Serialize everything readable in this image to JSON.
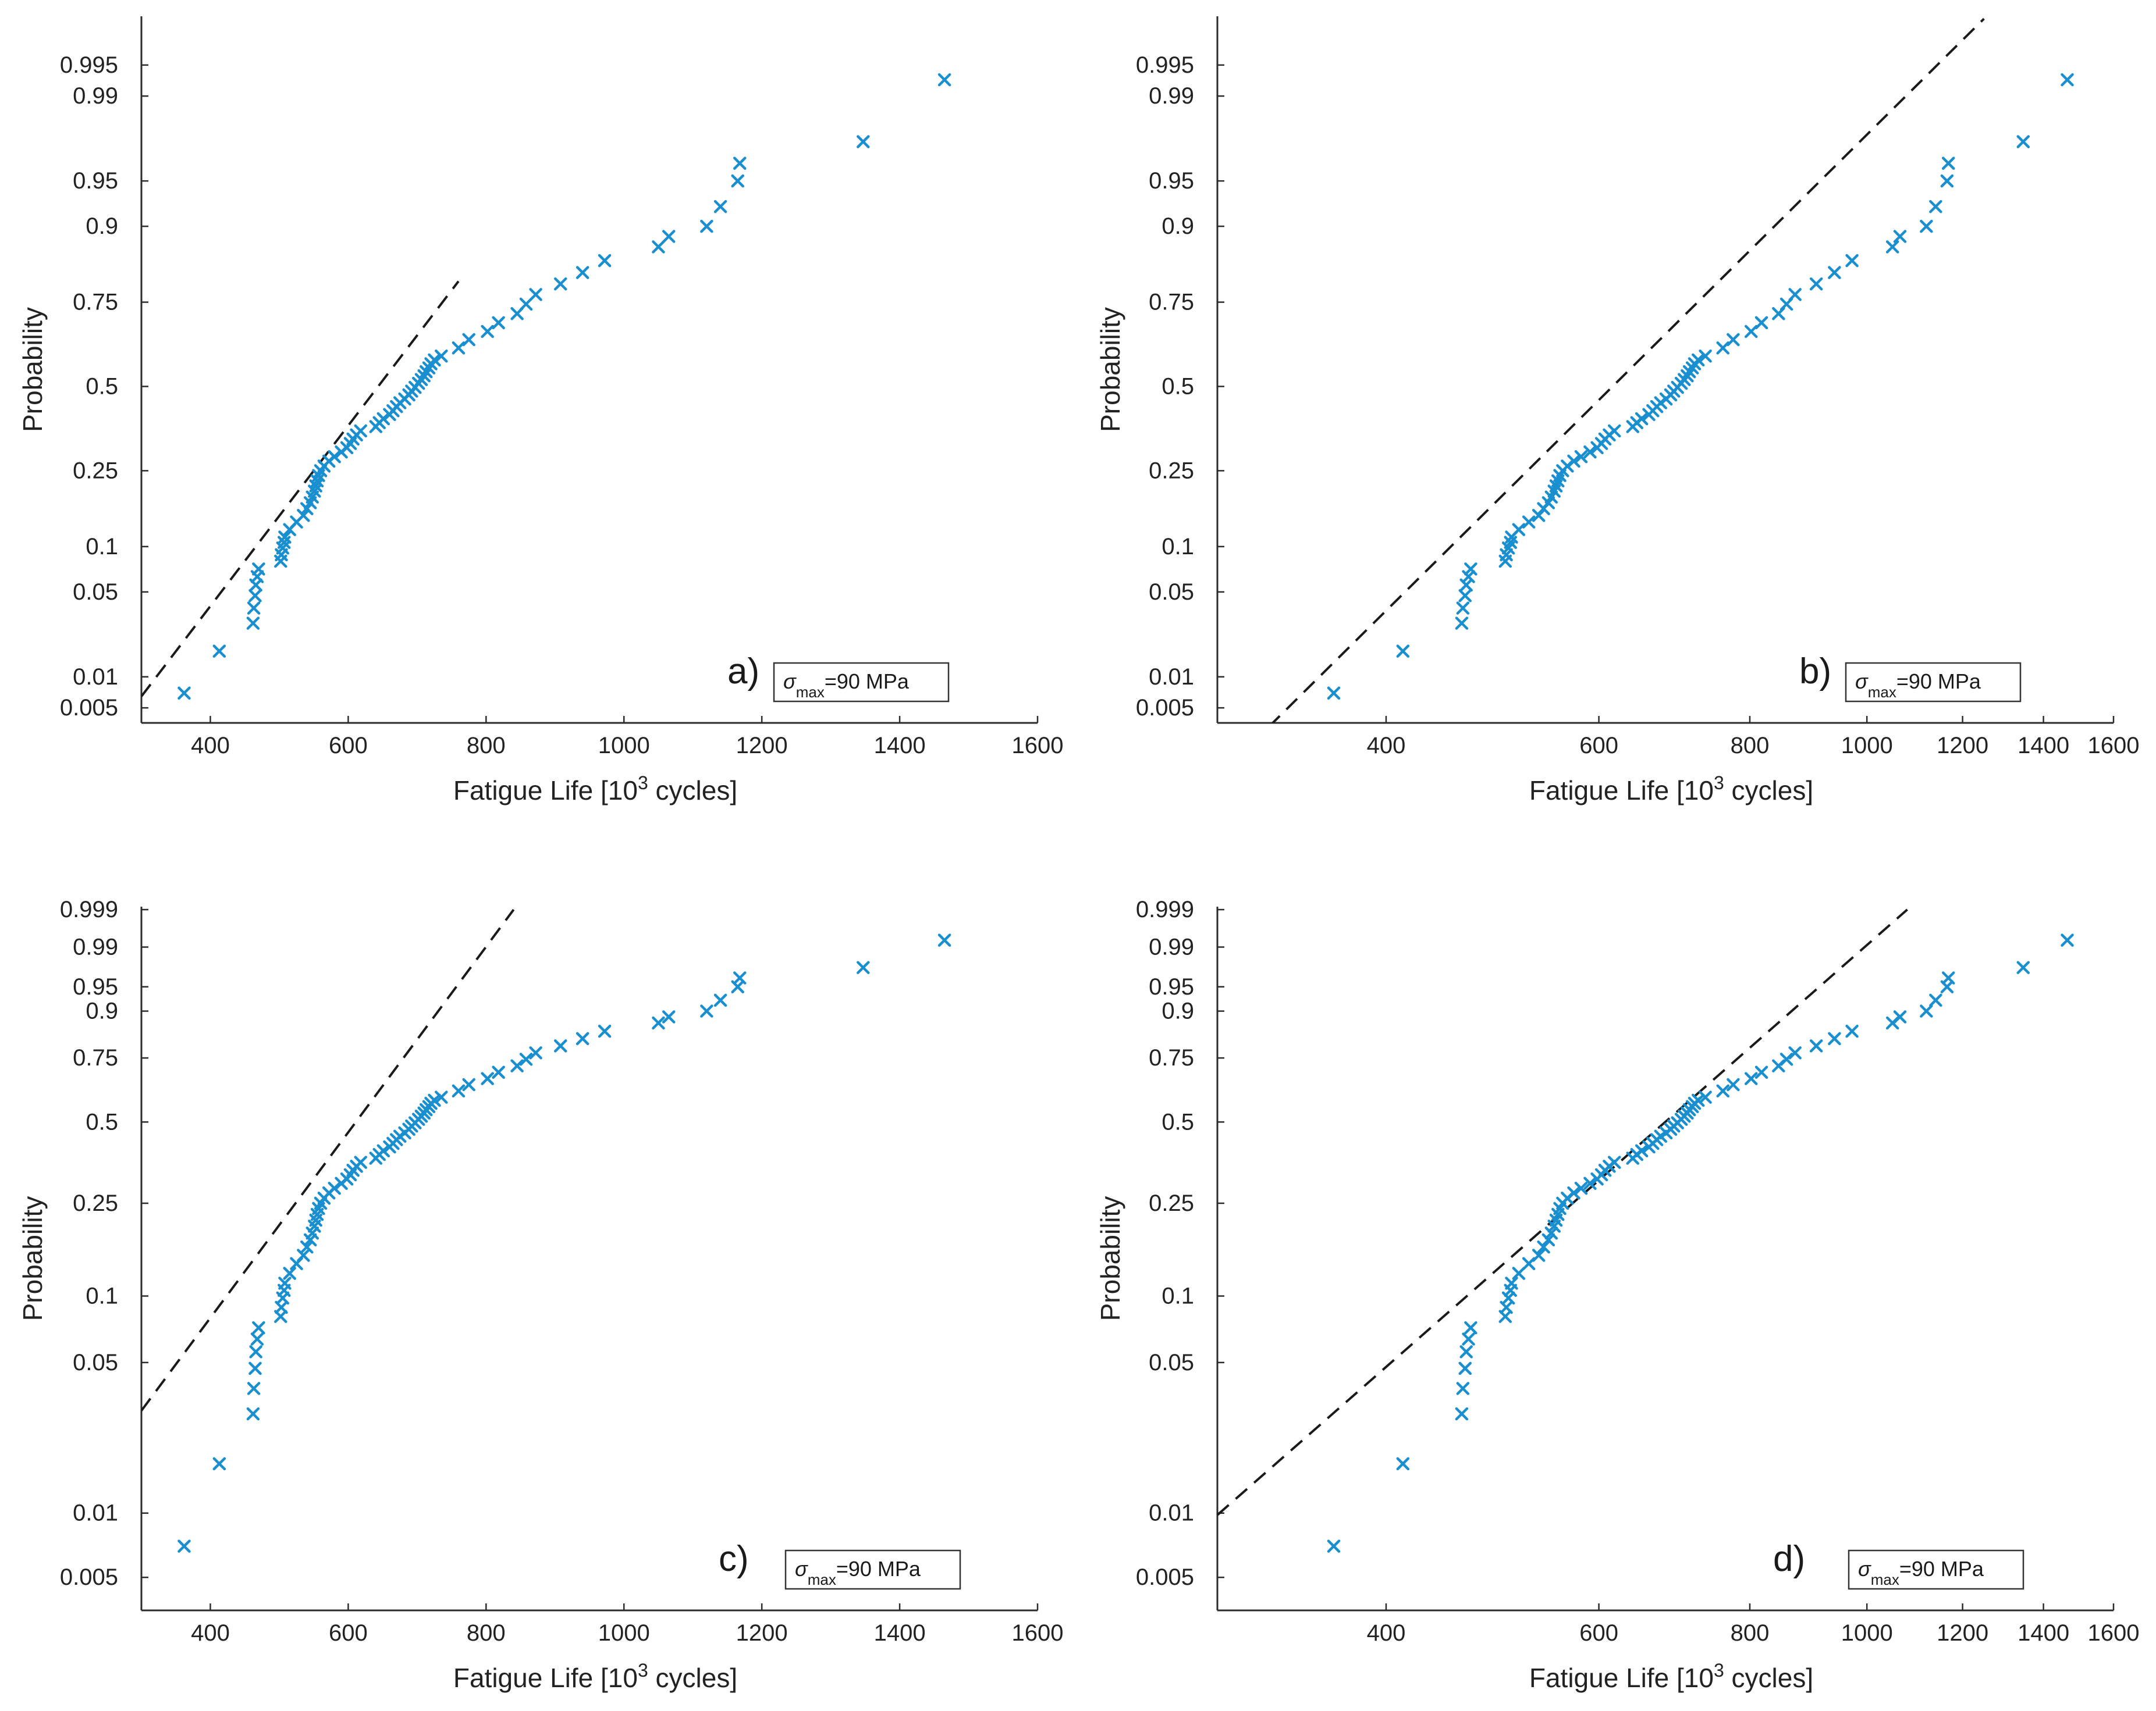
{
  "figure": {
    "xlabel_main": "Fatigue Life [10",
    "xlabel_sup": "3",
    "xlabel_end": " cycles]",
    "ylabel": "Probability",
    "annotation_sigma": "σ",
    "annotation_sub": "max",
    "annotation_rest": "=90 MPa"
  },
  "chart_data": [
    {
      "type": "scatter",
      "panel": "a)",
      "title": "",
      "xlabel": "Fatigue Life [10^3 cycles]",
      "ylabel": "Probability",
      "x_scale": "linear",
      "y_scale": "normal-probability",
      "xlim": [
        300,
        1600
      ],
      "ylim": [
        0.0035,
        0.9985
      ],
      "xticks": [
        400,
        600,
        800,
        1000,
        1200,
        1400,
        1600
      ],
      "xtick_labels": [
        "400",
        "600",
        "800",
        "1000",
        "1200",
        "1400",
        "1600"
      ],
      "yticks": [
        0.005,
        0.01,
        0.05,
        0.1,
        0.25,
        0.5,
        0.75,
        0.9,
        0.95,
        0.99,
        0.995
      ],
      "ytick_labels": [
        "0.005",
        "0.01",
        "0.05",
        "0.1",
        "0.25",
        "0.5",
        "0.75",
        "0.9",
        "0.95",
        "0.99",
        "0.995"
      ],
      "fit_line": {
        "style": "dashed",
        "x": [
          300,
          760
        ],
        "y": [
          0.0065,
          0.8
        ]
      },
      "annotation": "σmax=90 MPa",
      "series": [
        {
          "name": "data",
          "marker": "x",
          "color": "#1a8fcf",
          "x": [
            362,
            413,
            462,
            463,
            465,
            466,
            468,
            470,
            502,
            503,
            505,
            507,
            508,
            515,
            525,
            535,
            540,
            545,
            548,
            551,
            553,
            555,
            557,
            560,
            565,
            572,
            580,
            590,
            598,
            603,
            607,
            612,
            618,
            640,
            645,
            651,
            660,
            665,
            670,
            675,
            682,
            688,
            692,
            697,
            702,
            706,
            710,
            713,
            717,
            720,
            725,
            735,
            760,
            775,
            802,
            818,
            845,
            858,
            872,
            908,
            940,
            972,
            1050,
            1065,
            1120,
            1140,
            1165,
            1168,
            1347,
            1465
          ],
          "y": [
            0.007,
            0.017,
            0.029,
            0.038,
            0.047,
            0.056,
            0.064,
            0.072,
            0.081,
            0.089,
            0.098,
            0.106,
            0.114,
            0.126,
            0.139,
            0.151,
            0.164,
            0.176,
            0.188,
            0.201,
            0.213,
            0.225,
            0.238,
            0.25,
            0.262,
            0.275,
            0.287,
            0.3,
            0.312,
            0.324,
            0.337,
            0.349,
            0.361,
            0.374,
            0.386,
            0.398,
            0.411,
            0.423,
            0.436,
            0.448,
            0.46,
            0.473,
            0.485,
            0.497,
            0.51,
            0.522,
            0.534,
            0.547,
            0.559,
            0.572,
            0.584,
            0.596,
            0.621,
            0.646,
            0.67,
            0.695,
            0.72,
            0.745,
            0.769,
            0.794,
            0.819,
            0.843,
            0.868,
            0.885,
            0.9,
            0.925,
            0.95,
            0.963,
            0.975,
            0.993
          ]
        }
      ]
    },
    {
      "type": "scatter",
      "panel": "b)",
      "title": "",
      "xlabel": "Fatigue Life [10^3 cycles]",
      "ylabel": "Probability",
      "x_scale": "log",
      "y_scale": "normal-probability",
      "xlim": [
        290,
        1600
      ],
      "ylim": [
        0.0035,
        0.9985
      ],
      "xticks": [
        400,
        600,
        800,
        1000,
        1200,
        1400,
        1600
      ],
      "xtick_labels": [
        "400",
        "600",
        "800",
        "1000",
        "1200",
        "1400",
        "1600"
      ],
      "yticks": [
        0.005,
        0.01,
        0.05,
        0.1,
        0.25,
        0.5,
        0.75,
        0.9,
        0.95,
        0.99,
        0.995
      ],
      "ytick_labels": [
        "0.005",
        "0.01",
        "0.05",
        "0.1",
        "0.25",
        "0.5",
        "0.75",
        "0.9",
        "0.95",
        "0.99",
        "0.995"
      ],
      "fit_line": {
        "style": "dashed",
        "x": [
          320,
          1250
        ],
        "y": [
          0.0032,
          0.9984
        ]
      },
      "annotation": "σmax=90 MPa",
      "series": [
        {
          "name": "data",
          "marker": "x",
          "color": "#1a8fcf",
          "x": [
            362,
            413,
            462,
            463,
            465,
            466,
            468,
            470,
            502,
            503,
            505,
            507,
            508,
            515,
            525,
            535,
            540,
            545,
            548,
            551,
            553,
            555,
            557,
            560,
            565,
            572,
            580,
            590,
            598,
            603,
            607,
            612,
            618,
            640,
            645,
            651,
            660,
            665,
            670,
            675,
            682,
            688,
            692,
            697,
            702,
            706,
            710,
            713,
            717,
            720,
            725,
            735,
            760,
            775,
            802,
            818,
            845,
            858,
            872,
            908,
            940,
            972,
            1050,
            1065,
            1120,
            1140,
            1165,
            1168,
            1347,
            1465
          ],
          "y": [
            0.007,
            0.017,
            0.029,
            0.038,
            0.047,
            0.056,
            0.064,
            0.072,
            0.081,
            0.089,
            0.098,
            0.106,
            0.114,
            0.126,
            0.139,
            0.151,
            0.164,
            0.176,
            0.188,
            0.201,
            0.213,
            0.225,
            0.238,
            0.25,
            0.262,
            0.275,
            0.287,
            0.3,
            0.312,
            0.324,
            0.337,
            0.349,
            0.361,
            0.374,
            0.386,
            0.398,
            0.411,
            0.423,
            0.436,
            0.448,
            0.46,
            0.473,
            0.485,
            0.497,
            0.51,
            0.522,
            0.534,
            0.547,
            0.559,
            0.572,
            0.584,
            0.596,
            0.621,
            0.646,
            0.67,
            0.695,
            0.72,
            0.745,
            0.769,
            0.794,
            0.819,
            0.843,
            0.868,
            0.885,
            0.9,
            0.925,
            0.95,
            0.963,
            0.975,
            0.993
          ]
        }
      ]
    },
    {
      "type": "scatter",
      "panel": "c)",
      "title": "",
      "xlabel": "Fatigue Life [10^3 cycles]",
      "ylabel": "Probability",
      "x_scale": "linear",
      "y_scale": "probability",
      "xlim": [
        300,
        1600
      ],
      "ylim": [
        0.0035,
        0.9992
      ],
      "xticks": [
        400,
        600,
        800,
        1000,
        1200,
        1400,
        1600
      ],
      "xtick_labels": [
        "400",
        "600",
        "800",
        "1000",
        "1200",
        "1400",
        "1600"
      ],
      "yticks": [
        0.005,
        0.01,
        0.05,
        0.1,
        0.25,
        0.5,
        0.75,
        0.9,
        0.95,
        0.99,
        0.999
      ],
      "ytick_labels": [
        "0.005",
        "0.01",
        "0.05",
        "0.1",
        "0.25",
        "0.5",
        "0.75",
        "0.9",
        "0.95",
        "0.99",
        "0.999"
      ],
      "fit_line": {
        "style": "dashed",
        "x": [
          300,
          840
        ],
        "y": [
          0.03,
          0.999
        ]
      },
      "annotation": "σmax=90 MPa",
      "series": [
        {
          "name": "data",
          "marker": "x",
          "color": "#1a8fcf",
          "x": [
            362,
            413,
            462,
            463,
            465,
            466,
            468,
            470,
            502,
            503,
            505,
            507,
            508,
            515,
            525,
            535,
            540,
            545,
            548,
            551,
            553,
            555,
            557,
            560,
            565,
            572,
            580,
            590,
            598,
            603,
            607,
            612,
            618,
            640,
            645,
            651,
            660,
            665,
            670,
            675,
            682,
            688,
            692,
            697,
            702,
            706,
            710,
            713,
            717,
            720,
            725,
            735,
            760,
            775,
            802,
            818,
            845,
            858,
            872,
            908,
            940,
            972,
            1050,
            1065,
            1120,
            1140,
            1165,
            1168,
            1347,
            1465
          ],
          "y": [
            0.007,
            0.017,
            0.029,
            0.038,
            0.047,
            0.056,
            0.064,
            0.072,
            0.081,
            0.089,
            0.098,
            0.106,
            0.114,
            0.126,
            0.139,
            0.151,
            0.164,
            0.176,
            0.188,
            0.201,
            0.213,
            0.225,
            0.238,
            0.25,
            0.262,
            0.275,
            0.287,
            0.3,
            0.312,
            0.324,
            0.337,
            0.349,
            0.361,
            0.374,
            0.386,
            0.398,
            0.411,
            0.423,
            0.436,
            0.448,
            0.46,
            0.473,
            0.485,
            0.497,
            0.51,
            0.522,
            0.534,
            0.547,
            0.559,
            0.572,
            0.584,
            0.596,
            0.621,
            0.646,
            0.67,
            0.695,
            0.72,
            0.745,
            0.769,
            0.794,
            0.819,
            0.843,
            0.868,
            0.885,
            0.9,
            0.925,
            0.95,
            0.963,
            0.975,
            0.993
          ]
        }
      ]
    },
    {
      "type": "scatter",
      "panel": "d)",
      "title": "",
      "xlabel": "Fatigue Life [10^3 cycles]",
      "ylabel": "Probability",
      "x_scale": "log",
      "y_scale": "probability",
      "xlim": [
        290,
        1600
      ],
      "ylim": [
        0.0035,
        0.9992
      ],
      "xticks": [
        400,
        600,
        800,
        1000,
        1200,
        1400,
        1600
      ],
      "xtick_labels": [
        "400",
        "600",
        "800",
        "1000",
        "1200",
        "1400",
        "1600"
      ],
      "yticks": [
        0.005,
        0.01,
        0.05,
        0.1,
        0.25,
        0.5,
        0.75,
        0.9,
        0.95,
        0.99,
        0.999
      ],
      "ytick_labels": [
        "0.005",
        "0.01",
        "0.05",
        "0.1",
        "0.25",
        "0.5",
        "0.75",
        "0.9",
        "0.95",
        "0.99",
        "0.999"
      ],
      "fit_line": {
        "style": "dashed",
        "x": [
          290,
          1080
        ],
        "y": [
          0.0098,
          0.999
        ]
      },
      "annotation": "σmax=90 MPa",
      "series": [
        {
          "name": "data",
          "marker": "x",
          "color": "#1a8fcf",
          "x": [
            362,
            413,
            462,
            463,
            465,
            466,
            468,
            470,
            502,
            503,
            505,
            507,
            508,
            515,
            525,
            535,
            540,
            545,
            548,
            551,
            553,
            555,
            557,
            560,
            565,
            572,
            580,
            590,
            598,
            603,
            607,
            612,
            618,
            640,
            645,
            651,
            660,
            665,
            670,
            675,
            682,
            688,
            692,
            697,
            702,
            706,
            710,
            713,
            717,
            720,
            725,
            735,
            760,
            775,
            802,
            818,
            845,
            858,
            872,
            908,
            940,
            972,
            1050,
            1065,
            1120,
            1140,
            1165,
            1168,
            1347,
            1465
          ],
          "y": [
            0.007,
            0.017,
            0.029,
            0.038,
            0.047,
            0.056,
            0.064,
            0.072,
            0.081,
            0.089,
            0.098,
            0.106,
            0.114,
            0.126,
            0.139,
            0.151,
            0.164,
            0.176,
            0.188,
            0.201,
            0.213,
            0.225,
            0.238,
            0.25,
            0.262,
            0.275,
            0.287,
            0.3,
            0.312,
            0.324,
            0.337,
            0.349,
            0.361,
            0.374,
            0.386,
            0.398,
            0.411,
            0.423,
            0.436,
            0.448,
            0.46,
            0.473,
            0.485,
            0.497,
            0.51,
            0.522,
            0.534,
            0.547,
            0.559,
            0.572,
            0.584,
            0.596,
            0.621,
            0.646,
            0.67,
            0.695,
            0.72,
            0.745,
            0.769,
            0.794,
            0.819,
            0.843,
            0.868,
            0.885,
            0.9,
            0.925,
            0.95,
            0.963,
            0.975,
            0.993
          ]
        }
      ]
    }
  ]
}
